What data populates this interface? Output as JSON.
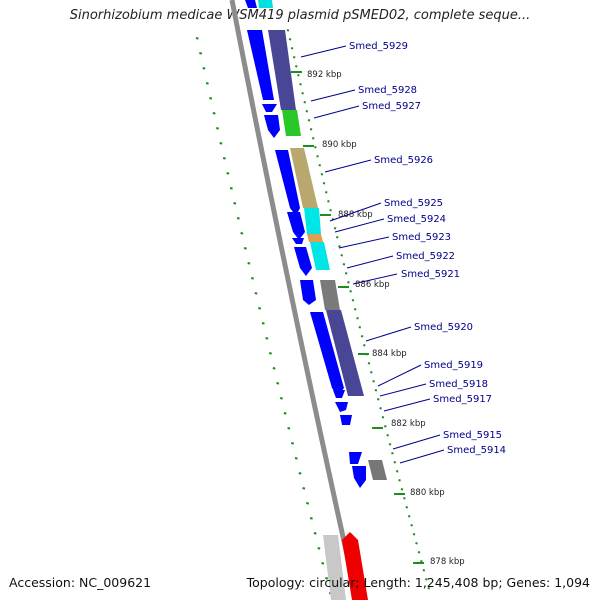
{
  "title": "Sinorhizobium medicae WSM419 plasmid pSMED02, complete seque...",
  "footer": {
    "accession": "Accession: NC_009621",
    "topology": "Topology: circular; Length: 1,245,408 bp; Genes: 1,094"
  },
  "colors": {
    "backbone": "#8c8c8c",
    "forward_genes": "#0000ff",
    "dots": "#1e8c1e",
    "label": "#00008b"
  },
  "ticks": [
    "892 kbp",
    "890 kbp",
    "888 kbp",
    "886 kbp",
    "884 kbp",
    "882 kbp",
    "880 kbp",
    "878 kbp"
  ],
  "gene_labels": [
    "Smed_5929",
    "Smed_5928",
    "Smed_5927",
    "Smed_5926",
    "Smed_5925",
    "Smed_5924",
    "Smed_5923",
    "Smed_5922",
    "Smed_5921",
    "Smed_5920",
    "Smed_5919",
    "Smed_5918",
    "Smed_5917",
    "Smed_5915",
    "Smed_5914"
  ]
}
